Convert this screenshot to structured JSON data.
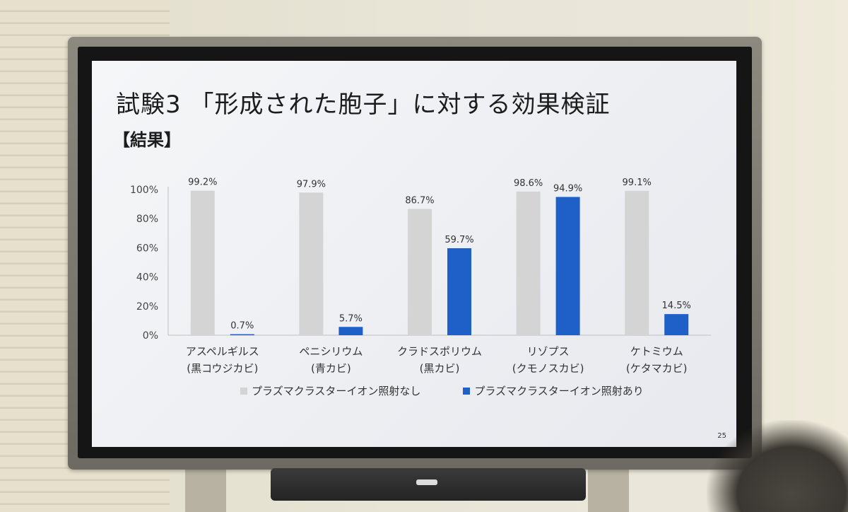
{
  "slide": {
    "title": "試験3 「形成された胞子」に対する効果検証",
    "subtitle": "【結果】",
    "page_number": "25"
  },
  "colors": {
    "series_without": "#d4d4d4",
    "series_with": "#1f5fc8",
    "axis": "#bfbfbf"
  },
  "chart_data": {
    "type": "bar",
    "title": "",
    "xlabel": "",
    "ylabel": "",
    "ylim": [
      0,
      100
    ],
    "yticks": [
      "0%",
      "20%",
      "40%",
      "60%",
      "80%",
      "100%"
    ],
    "categories": [
      [
        "アスペルギルス",
        "(黒コウジカビ)"
      ],
      [
        "ペニシリウム",
        "(青カビ)"
      ],
      [
        "クラドスポリウム",
        "(黒カビ)"
      ],
      [
        "リゾプス",
        "(クモノスカビ)"
      ],
      [
        "ケトミウム",
        "(ケタマカビ)"
      ]
    ],
    "series": [
      {
        "name": "プラズマクラスターイオン照射なし",
        "values": [
          99.2,
          97.9,
          86.7,
          98.6,
          99.1
        ],
        "labels": [
          "99.2%",
          "97.9%",
          "86.7%",
          "98.6%",
          "99.1%"
        ]
      },
      {
        "name": "プラズマクラスターイオン照射あり",
        "values": [
          0.7,
          5.7,
          59.7,
          94.9,
          14.5
        ],
        "labels": [
          "0.7%",
          "5.7%",
          "59.7%",
          "94.9%",
          "14.5%"
        ]
      }
    ],
    "legend": "bottom",
    "grid": false
  }
}
